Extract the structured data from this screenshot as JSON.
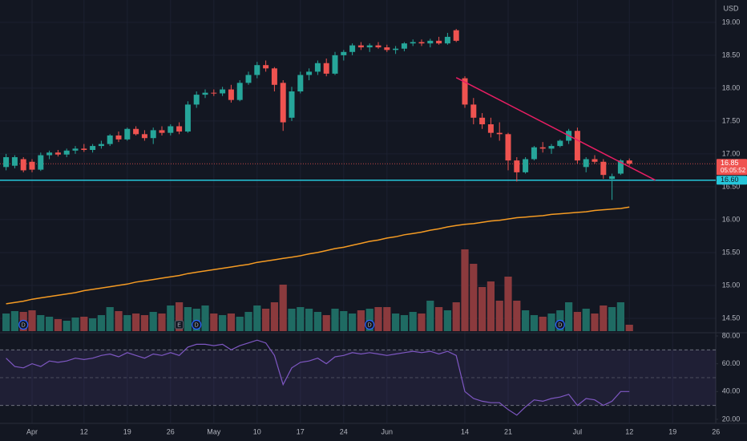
{
  "chart_data": {
    "type": "candlestick",
    "currency": "USD",
    "categories": [
      null,
      null,
      null,
      "Apr",
      null,
      null,
      null,
      null,
      null,
      "12",
      null,
      null,
      null,
      null,
      "19",
      null,
      null,
      null,
      null,
      "26",
      null,
      null,
      null,
      null,
      "May",
      null,
      null,
      null,
      null,
      "10",
      null,
      null,
      null,
      null,
      "17",
      null,
      null,
      null,
      null,
      "24",
      null,
      null,
      null,
      null,
      "Jun",
      null,
      null,
      null,
      null,
      null,
      null,
      null,
      null,
      "14",
      null,
      null,
      null,
      null,
      "21",
      null,
      null,
      null,
      null,
      null,
      null,
      null,
      "Jul",
      null,
      null,
      null,
      null,
      null,
      "12",
      null,
      null,
      null,
      null,
      "19",
      null,
      null,
      null,
      null,
      "26"
    ],
    "open": [
      16.8,
      16.82,
      16.92,
      16.88,
      16.76,
      16.98,
      17.02,
      16.99,
      17.05,
      17.08,
      17.06,
      17.12,
      17.15,
      17.28,
      17.22,
      17.38,
      17.3,
      17.24,
      17.36,
      17.32,
      17.42,
      17.34,
      17.75,
      17.9,
      17.93,
      17.92,
      17.98,
      17.82,
      18.08,
      18.2,
      18.35,
      18.3,
      18.08,
      17.55,
      17.95,
      18.2,
      18.25,
      18.38,
      18.22,
      18.5,
      18.55,
      18.65,
      18.62,
      18.65,
      18.62,
      18.58,
      18.6,
      18.68,
      18.7,
      18.68,
      18.72,
      18.68,
      18.88,
      18.15,
      17.75,
      17.55,
      17.45,
      17.32,
      17.3,
      16.9,
      16.72,
      16.92,
      17.1,
      17.08,
      17.12,
      17.2,
      17.35,
      16.8,
      16.92,
      16.88,
      16.62,
      16.7,
      16.9,
      null,
      null,
      null,
      null,
      null,
      null,
      null,
      null,
      null,
      null
    ],
    "high": [
      17.0,
      16.98,
      16.95,
      16.92,
      17.02,
      17.05,
      17.06,
      17.08,
      17.12,
      17.15,
      17.15,
      17.2,
      17.3,
      17.34,
      17.4,
      17.42,
      17.36,
      17.4,
      17.42,
      17.45,
      17.48,
      17.8,
      17.95,
      17.98,
      17.98,
      18.02,
      18.05,
      18.12,
      18.25,
      18.4,
      18.42,
      18.32,
      18.12,
      18.02,
      18.25,
      18.3,
      18.42,
      18.45,
      18.55,
      18.58,
      18.68,
      18.7,
      18.68,
      18.7,
      18.66,
      18.64,
      18.7,
      18.74,
      18.74,
      18.75,
      18.78,
      18.84,
      18.9,
      18.18,
      17.85,
      17.62,
      17.55,
      17.48,
      17.32,
      16.95,
      16.95,
      17.12,
      17.18,
      17.15,
      17.22,
      17.38,
      17.4,
      16.95,
      16.98,
      16.92,
      16.7,
      16.92,
      16.93,
      null,
      null,
      null,
      null,
      null,
      null,
      null,
      null,
      null,
      null
    ],
    "low": [
      16.75,
      16.78,
      16.72,
      16.72,
      16.74,
      16.92,
      16.96,
      16.95,
      17.0,
      17.03,
      17.02,
      17.08,
      17.12,
      17.18,
      17.2,
      17.28,
      17.2,
      17.15,
      17.28,
      17.28,
      17.3,
      17.32,
      17.7,
      17.85,
      17.88,
      17.88,
      17.78,
      17.8,
      18.05,
      18.15,
      18.25,
      17.95,
      17.35,
      17.5,
      17.92,
      18.12,
      18.2,
      18.18,
      18.2,
      18.42,
      18.5,
      18.58,
      18.55,
      18.6,
      18.55,
      18.52,
      18.56,
      18.64,
      18.64,
      18.62,
      18.66,
      18.66,
      18.7,
      17.7,
      17.45,
      17.38,
      17.25,
      17.2,
      16.75,
      16.58,
      16.7,
      16.9,
      17.02,
      17.0,
      17.1,
      17.15,
      16.85,
      16.72,
      16.85,
      16.62,
      16.3,
      16.68,
      16.82,
      null,
      null,
      null,
      null,
      null,
      null,
      null,
      null,
      null,
      null
    ],
    "close": [
      16.95,
      16.95,
      16.75,
      16.76,
      16.98,
      17.02,
      16.99,
      17.05,
      17.08,
      17.06,
      17.12,
      17.15,
      17.28,
      17.22,
      17.38,
      17.3,
      17.24,
      17.36,
      17.32,
      17.42,
      17.34,
      17.75,
      17.9,
      17.93,
      17.92,
      17.98,
      17.82,
      18.08,
      18.2,
      18.35,
      18.3,
      18.05,
      17.48,
      17.95,
      18.2,
      18.25,
      18.38,
      18.22,
      18.5,
      18.55,
      18.65,
      18.62,
      18.65,
      18.62,
      18.58,
      18.6,
      18.68,
      18.7,
      18.68,
      18.72,
      18.68,
      18.78,
      18.72,
      17.75,
      17.55,
      17.45,
      17.32,
      17.3,
      16.9,
      16.72,
      16.92,
      17.1,
      17.08,
      17.12,
      17.2,
      17.35,
      16.9,
      16.92,
      16.88,
      16.68,
      16.66,
      16.9,
      16.85,
      null,
      null,
      null,
      null,
      null,
      null,
      null,
      null,
      null,
      null
    ],
    "colors": {
      "up": "#26a69a",
      "down": "#ef5350"
    },
    "ylim": [
      14.28,
      19.34
    ],
    "yticks": [
      {
        "value": 14.5,
        "label": "14.50"
      },
      {
        "value": 15,
        "label": "15.00"
      },
      {
        "value": 15.5,
        "label": "15.50"
      },
      {
        "value": 16,
        "label": "16.00"
      },
      {
        "value": 16.5,
        "label": "16.50"
      },
      {
        "value": 17,
        "label": "17.00"
      },
      {
        "value": 17.5,
        "label": "17.50"
      },
      {
        "value": 18,
        "label": "18.00"
      },
      {
        "value": 18.5,
        "label": "18.50"
      },
      {
        "value": 19,
        "label": "19.00"
      }
    ],
    "grid": true,
    "last_price": 16.85,
    "countdown": "05:05:52",
    "horizontal_line": {
      "value": 16.6,
      "label": "16.60",
      "color": "#26c6da"
    },
    "trendline": {
      "color": "#e91e63",
      "x": [
        52,
        75
      ],
      "y": [
        18.16,
        16.6
      ]
    },
    "moving_average": {
      "color": "#f59b23",
      "values": [
        14.72,
        14.74,
        14.76,
        14.79,
        14.81,
        14.83,
        14.85,
        14.87,
        14.89,
        14.92,
        14.94,
        14.96,
        14.98,
        15.0,
        15.02,
        15.05,
        15.07,
        15.09,
        15.11,
        15.13,
        15.15,
        15.18,
        15.2,
        15.22,
        15.24,
        15.26,
        15.28,
        15.3,
        15.32,
        15.35,
        15.37,
        15.39,
        15.41,
        15.43,
        15.45,
        15.48,
        15.5,
        15.53,
        15.56,
        15.58,
        15.61,
        15.64,
        15.67,
        15.69,
        15.72,
        15.74,
        15.77,
        15.79,
        15.81,
        15.84,
        15.86,
        15.89,
        15.91,
        15.93,
        15.94,
        15.96,
        15.98,
        15.99,
        16.01,
        16.03,
        16.04,
        16.05,
        16.06,
        16.08,
        16.09,
        16.1,
        16.11,
        16.12,
        16.14,
        16.15,
        16.16,
        16.17,
        16.19,
        null,
        null,
        null,
        null,
        null,
        null,
        null,
        null,
        null,
        null
      ]
    },
    "volume": {
      "ylim": [
        0,
        130
      ],
      "colors": {
        "up": "#1f6b63",
        "down": "#8b3a3d"
      },
      "values": [
        22,
        25,
        24,
        26,
        20,
        18,
        15,
        13,
        17,
        18,
        16,
        20,
        30,
        25,
        20,
        22,
        20,
        24,
        22,
        32,
        36,
        30,
        28,
        32,
        22,
        20,
        22,
        18,
        24,
        32,
        28,
        36,
        58,
        28,
        30,
        28,
        24,
        20,
        28,
        25,
        22,
        26,
        28,
        30,
        30,
        22,
        20,
        24,
        22,
        38,
        30,
        26,
        36,
        102,
        84,
        55,
        62,
        38,
        68,
        38,
        26,
        20,
        18,
        22,
        26,
        36,
        24,
        28,
        22,
        32,
        30,
        36,
        8,
        null,
        null,
        null,
        null,
        null,
        null,
        null,
        null,
        null,
        null
      ]
    },
    "events": [
      {
        "at": 2,
        "label": "D"
      },
      {
        "at": 20,
        "label": "E"
      },
      {
        "at": 22,
        "label": "D"
      },
      {
        "at": 42,
        "label": "D"
      },
      {
        "at": 64,
        "label": "D"
      }
    ],
    "rsi": {
      "color": "#7e57c2",
      "ylim": [
        17.1,
        82.3
      ],
      "bands": [
        30,
        50,
        70
      ],
      "yticks": [
        {
          "value": 20,
          "label": "20.00"
        },
        {
          "value": 40,
          "label": "40.00"
        },
        {
          "value": 60,
          "label": "60.00"
        },
        {
          "value": 80,
          "label": "80.00"
        }
      ],
      "values": [
        64,
        58,
        57,
        60,
        58,
        62,
        61,
        62,
        64,
        63,
        64,
        66,
        67,
        65,
        68,
        66,
        64,
        67,
        66,
        68,
        66,
        72,
        74,
        74,
        73,
        74,
        70,
        73,
        75,
        77,
        75,
        66,
        45,
        57,
        61,
        62,
        64,
        60,
        65,
        66,
        68,
        67,
        68,
        67,
        66,
        67,
        68,
        69,
        68,
        69,
        67,
        69,
        66,
        40,
        35,
        33,
        32,
        32,
        27,
        23,
        29,
        34,
        33,
        35,
        36,
        38,
        30,
        35,
        34,
        30,
        33,
        40,
        40,
        null,
        null,
        null,
        null,
        null,
        null,
        null,
        null,
        null,
        null
      ]
    }
  }
}
